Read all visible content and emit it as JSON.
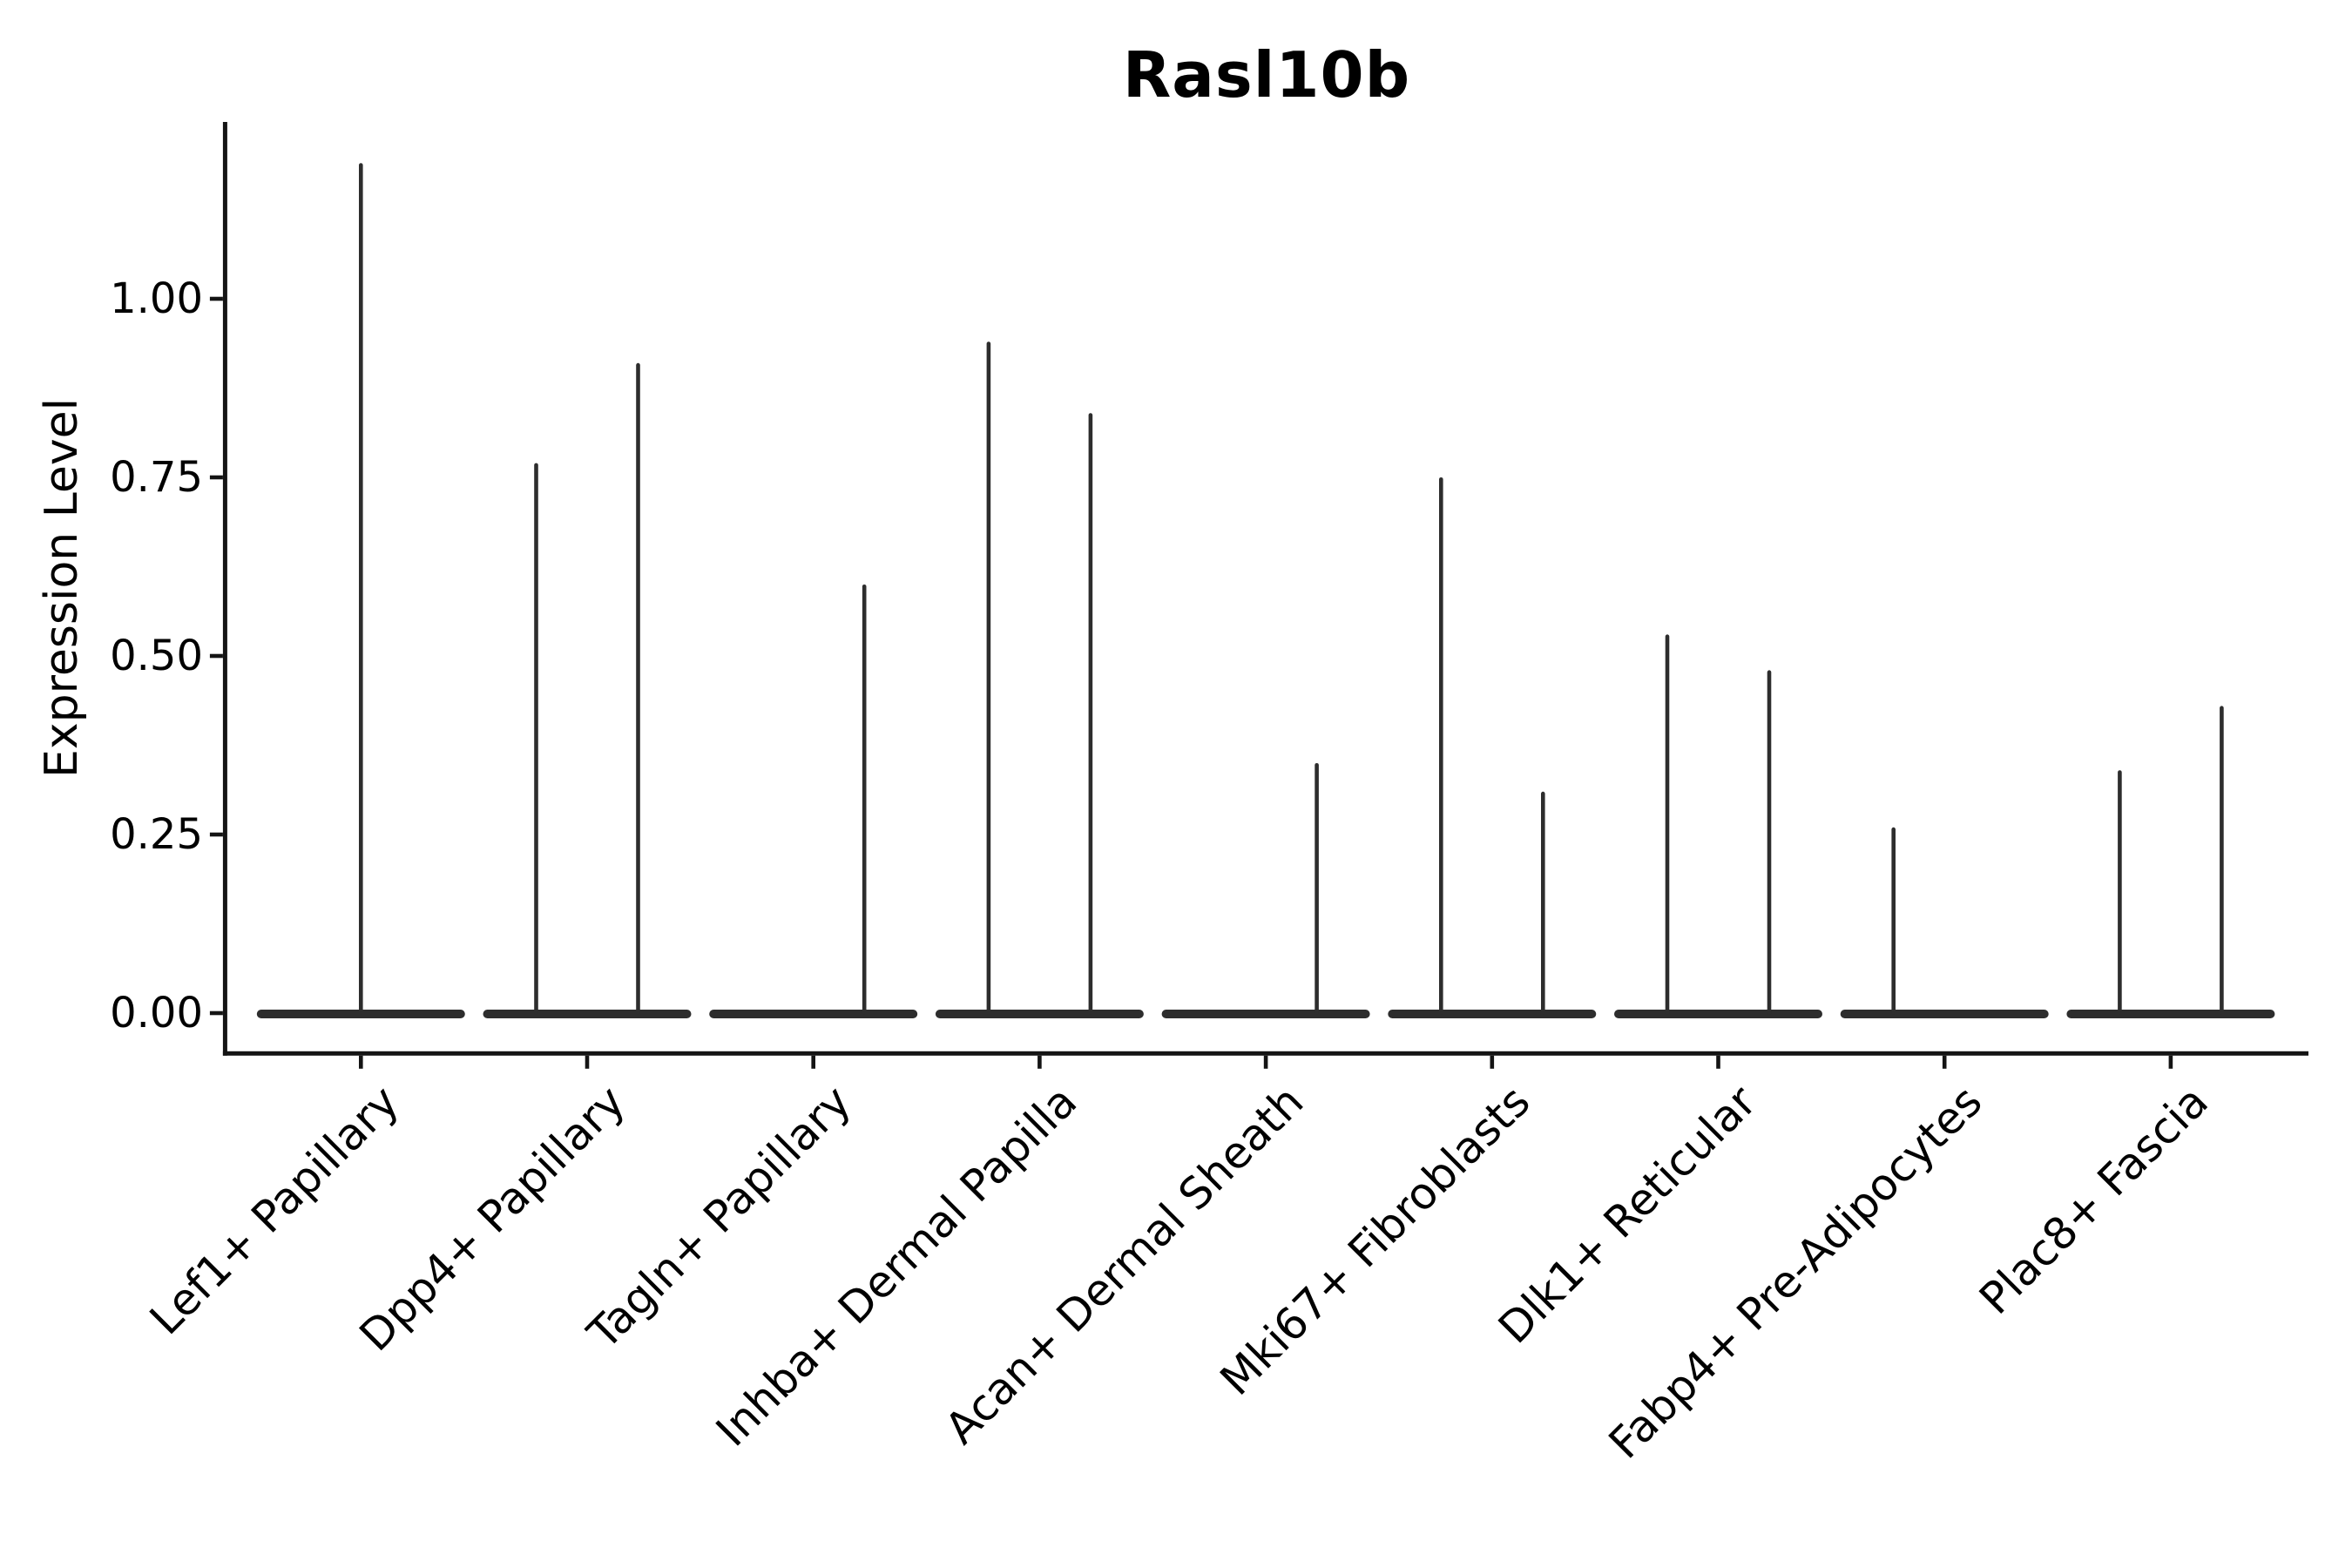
{
  "title": "Rasl10b",
  "y_axis": {
    "label": "Expression Level",
    "tick_labels": [
      "1.00",
      "0.75",
      "0.50",
      "0.25",
      "0.00"
    ],
    "tick_values": [
      1.0,
      0.75,
      0.5,
      0.25,
      0.0
    ]
  },
  "x_axis": {
    "tick_labels": [
      "Lef1+ Papillary",
      "Dpp4+ Papillary",
      "Tagln+ Papillary",
      "Inhba+ Dermal Papilla",
      "Acan+ Dermal Sheath",
      "Mki67+ Fibroblasts",
      "Dlk1+ Reticular",
      "Fabp4+ Pre-Adipocytes",
      "Plac8+ Fascia"
    ]
  },
  "chart_data": {
    "type": "violin",
    "title": "Rasl10b",
    "xlabel": "",
    "ylabel": "Expression Level",
    "ylim": [
      -0.06,
      1.25
    ],
    "yticks": [
      0.0,
      0.25,
      0.5,
      0.75,
      1.0
    ],
    "grid": false,
    "legend": null,
    "categories": [
      "Lef1+ Papillary",
      "Dpp4+ Papillary",
      "Tagln+ Papillary",
      "Inhba+ Dermal Papilla",
      "Acan+ Dermal Sheath",
      "Mki67+ Fibroblasts",
      "Dlk1+ Reticular",
      "Fabp4+ Pre-Adipocytes",
      "Plac8+ Fascia"
    ],
    "violins": [
      {
        "category": "Lef1+ Papillary",
        "baseline_value": 0,
        "spikes": [
          {
            "side": "center",
            "peak": 1.19
          }
        ]
      },
      {
        "category": "Dpp4+ Papillary",
        "baseline_value": 0,
        "spikes": [
          {
            "side": "left",
            "peak": 0.77
          },
          {
            "side": "right",
            "peak": 0.91
          }
        ]
      },
      {
        "category": "Tagln+ Papillary",
        "baseline_value": 0,
        "spikes": [
          {
            "side": "right",
            "peak": 0.6
          }
        ]
      },
      {
        "category": "Inhba+ Dermal Papilla",
        "baseline_value": 0,
        "spikes": [
          {
            "side": "left",
            "peak": 0.94
          },
          {
            "side": "right",
            "peak": 0.84
          }
        ]
      },
      {
        "category": "Acan+ Dermal Sheath",
        "baseline_value": 0,
        "spikes": [
          {
            "side": "right",
            "peak": 0.35
          }
        ]
      },
      {
        "category": "Mki67+ Fibroblasts",
        "baseline_value": 0,
        "spikes": [
          {
            "side": "left",
            "peak": 0.75
          },
          {
            "side": "right",
            "peak": 0.31
          }
        ]
      },
      {
        "category": "Dlk1+ Reticular",
        "baseline_value": 0,
        "spikes": [
          {
            "side": "left",
            "peak": 0.53
          },
          {
            "side": "right",
            "peak": 0.48
          }
        ]
      },
      {
        "category": "Fabp4+ Pre-Adipocytes",
        "baseline_value": 0,
        "spikes": [
          {
            "side": "left",
            "peak": 0.26
          }
        ]
      },
      {
        "category": "Plac8+ Fascia",
        "baseline_value": 0,
        "spikes": [
          {
            "side": "left",
            "peak": 0.34
          },
          {
            "side": "right",
            "peak": 0.43
          }
        ]
      }
    ],
    "description": "Violin plot; each cell type has a flat violin body at expression 0 with thin density spikes reaching the listed peak expression level"
  },
  "colors": {
    "violin": "#2d2d2d",
    "axis": "#141414",
    "background": "#ffffff",
    "text": "#000000"
  }
}
